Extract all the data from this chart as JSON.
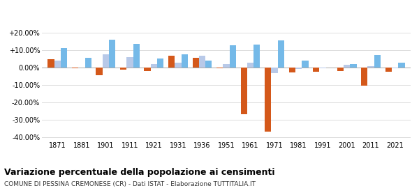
{
  "years": [
    1871,
    1881,
    1901,
    1911,
    1921,
    1931,
    1936,
    1951,
    1961,
    1971,
    1981,
    1991,
    2001,
    2011,
    2021
  ],
  "pessina": [
    4.5,
    -0.5,
    -4.5,
    -1.5,
    -2.0,
    6.5,
    5.5,
    -0.5,
    -27.0,
    -37.0,
    -3.0,
    -2.5,
    -2.0,
    -10.5,
    -2.5
  ],
  "provincia": [
    4.0,
    -0.3,
    7.5,
    6.0,
    2.0,
    2.5,
    6.5,
    2.0,
    2.5,
    -3.5,
    -1.0,
    -0.5,
    1.5,
    0.5,
    -0.5
  ],
  "lombardia": [
    11.0,
    5.5,
    16.0,
    13.5,
    5.0,
    7.5,
    4.0,
    12.5,
    13.0,
    15.5,
    4.0,
    0.0,
    2.0,
    7.0,
    2.5
  ],
  "color_pessina": "#d4581a",
  "color_provincia": "#b8c9e8",
  "color_lombardia": "#74b9e8",
  "title": "Variazione percentuale della popolazione ai censimenti",
  "subtitle": "COMUNE DI PESSINA CREMONESE (CR) - Dati ISTAT - Elaborazione TUTTITALIA.IT",
  "ylabel_ticks": [
    "+20.00%",
    "+10.00%",
    "0.00%",
    "-10.00%",
    "-20.00%",
    "-30.00%",
    "-40.00%"
  ],
  "yticks": [
    20,
    10,
    0,
    -10,
    -20,
    -30,
    -40
  ],
  "ylim": [
    -42,
    23
  ],
  "bg_color": "#ffffff",
  "grid_color": "#dddddd"
}
